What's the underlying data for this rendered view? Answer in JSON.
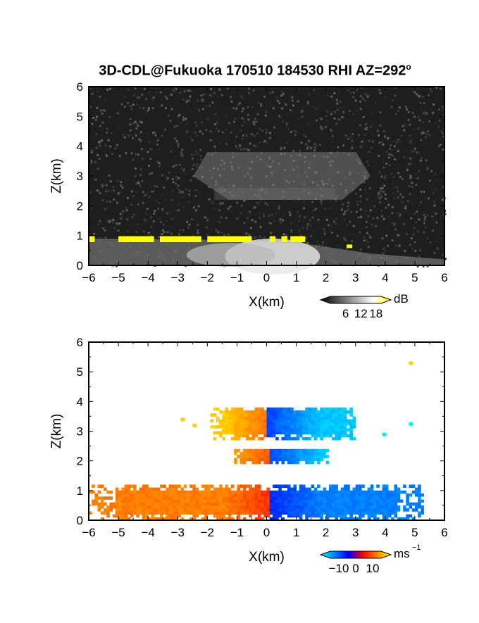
{
  "figure": {
    "title": "3D-CDL@Fukuoka 170510 184530 RHI AZ=292",
    "title_suffix": "o"
  },
  "chart_data": [
    {
      "type": "heatmap",
      "name": "reflectivity",
      "xlabel": "X(km)",
      "ylabel": "Z(km)",
      "xlim": [
        -6,
        6
      ],
      "ylim": [
        0,
        6
      ],
      "xticks": [
        -6,
        -5,
        -4,
        -3,
        -2,
        -1,
        0,
        1,
        2,
        3,
        4,
        5,
        6
      ],
      "yticks": [
        0,
        1,
        2,
        3,
        4,
        5,
        6
      ],
      "colorbar": {
        "unit": "dB",
        "ticks": [
          6,
          12,
          18
        ],
        "range": [
          0,
          20
        ],
        "colors": [
          "#000000",
          "#555555",
          "#aaaaaa",
          "#ffffff",
          "#ffff00"
        ]
      },
      "background": "#1e1e1e",
      "features": [
        {
          "label": "upper layer",
          "x": [
            -2.0,
            3.5
          ],
          "z": [
            2.2,
            3.8
          ],
          "value_db": 10
        },
        {
          "label": "near-surface layer",
          "x": [
            -6.0,
            6.0
          ],
          "z": [
            0.0,
            0.9
          ],
          "value_db": 14
        },
        {
          "label": "saturated echoes",
          "x": [
            -6.0,
            1.5
          ],
          "z": [
            0.7,
            1.0
          ],
          "value_db": 20
        }
      ]
    },
    {
      "type": "heatmap",
      "name": "doppler velocity",
      "xlabel": "X(km)",
      "ylabel": "Z(km)",
      "xlim": [
        -6,
        6
      ],
      "ylim": [
        0,
        6
      ],
      "xticks": [
        -6,
        -5,
        -4,
        -3,
        -2,
        -1,
        0,
        1,
        2,
        3,
        4,
        5,
        6
      ],
      "yticks": [
        0,
        1,
        2,
        3,
        4,
        5,
        6
      ],
      "colorbar": {
        "unit": "ms",
        "unit_exponent": "−1",
        "ticks": [
          -10,
          0,
          10
        ],
        "tick_labels": [
          "−10",
          "0",
          "10"
        ],
        "range": [
          -15,
          15
        ],
        "colors": [
          "#00ffff",
          "#0080ff",
          "#0000ff",
          "#ff0000",
          "#ff8000",
          "#ffff00"
        ]
      },
      "features": [
        {
          "label": "upper layer",
          "x": [
            -1.9,
            3.0
          ],
          "z": [
            2.7,
            3.8
          ],
          "velocity_left": 12,
          "velocity_right": -12
        },
        {
          "label": "middle layer",
          "x": [
            -1.1,
            2.1
          ],
          "z": [
            1.9,
            2.4
          ],
          "velocity_left": 10,
          "velocity_right": -12
        },
        {
          "label": "near-surface layer",
          "x": [
            -6.0,
            5.2
          ],
          "z": [
            0.0,
            1.1
          ],
          "velocity_left": 7,
          "velocity_right": -8
        }
      ]
    }
  ]
}
